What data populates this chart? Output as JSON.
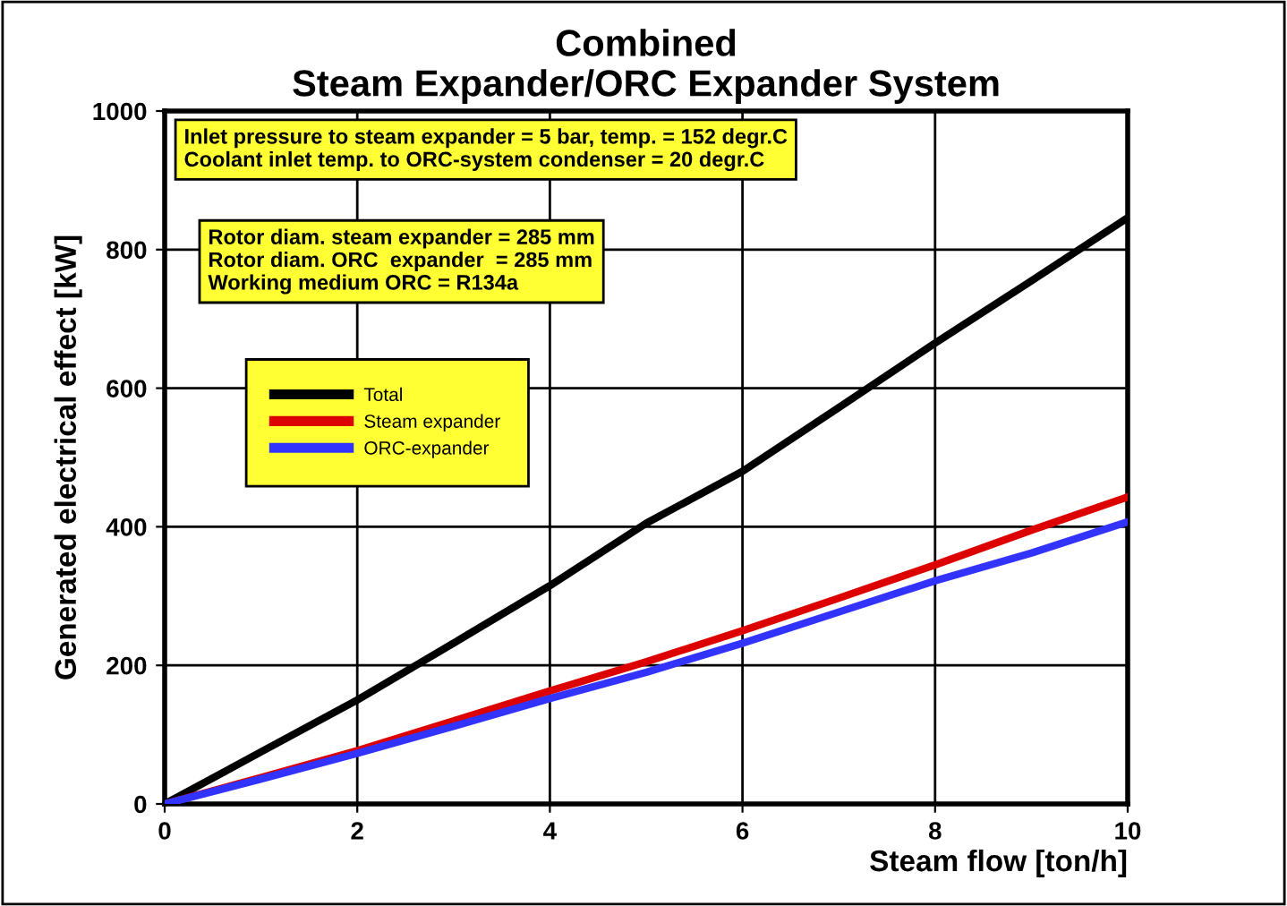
{
  "chart_data": {
    "type": "line",
    "title": "Combined\nSteam Expander/ORC Expander System",
    "xlabel": "Steam flow [ton/h]",
    "ylabel": "Generated electrical effect [kW]",
    "x": [
      0,
      1,
      2,
      3,
      4,
      5,
      6,
      7,
      8,
      9,
      10
    ],
    "series": [
      {
        "name": "Total",
        "color": "#000000",
        "values": [
          0,
          75,
          150,
          232,
          315,
          405,
          480,
          572,
          665,
          755,
          846
        ]
      },
      {
        "name": "Steam expander",
        "color": "#dd0000",
        "values": [
          0,
          38,
          77,
          120,
          163,
          205,
          250,
          297,
          345,
          395,
          443
        ]
      },
      {
        "name": "ORC-expander",
        "color": "#3333ff",
        "values": [
          0,
          36,
          73,
          112,
          152,
          190,
          232,
          277,
          322,
          362,
          407
        ]
      }
    ],
    "xlim": [
      0,
      10
    ],
    "ylim": [
      0,
      1000
    ],
    "xticks": [
      0,
      2,
      4,
      6,
      8,
      10
    ],
    "yticks": [
      0,
      200,
      400,
      600,
      800,
      1000
    ],
    "grid": true,
    "legend": "left",
    "line_style": "solid",
    "marker": "none",
    "annotations": [
      "Inlet pressure to steam expander = 5 bar, temp. = 152 degr.C\nCoolant inlet temp. to ORC-system condenser = 20 degr.C",
      "Rotor diam. steam expander = 285 mm\nRotor diam. ORC  expander  = 285 mm\nWorking medium ORC = R134a"
    ]
  }
}
